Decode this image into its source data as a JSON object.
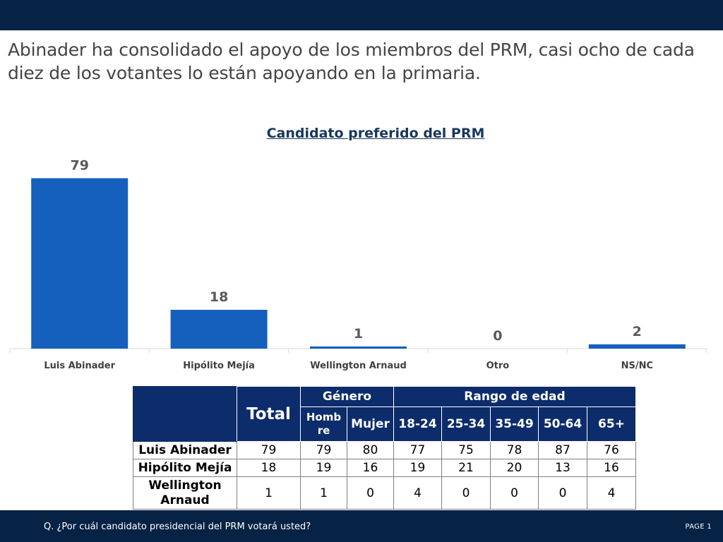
{
  "headline": "Abinader ha consolidado el apoyo de los miembros del PRM, casi ocho de cada diez de los votantes lo están apoyando en la primaria.",
  "chart_data": {
    "type": "bar",
    "title": "Candidato preferido del PRM",
    "categories": [
      "Luis Abinader",
      "Hipólito Mejía",
      "Wellington Arnaud",
      "Otro",
      "NS/NC"
    ],
    "values": [
      79,
      18,
      1,
      0,
      2
    ],
    "ylim": [
      0,
      88
    ],
    "bar_color": "#1560bd",
    "grid": false
  },
  "table": {
    "total_label": "Total",
    "groups": [
      "Género",
      "Rango de edad"
    ],
    "sub_headers": [
      "Hombre",
      "Mujer",
      "18-24",
      "25-34",
      "35-49",
      "50-64",
      "65+"
    ],
    "rows": [
      {
        "label": "Luis Abinader",
        "values": [
          "79",
          "79",
          "80",
          "77",
          "75",
          "78",
          "87",
          "76"
        ]
      },
      {
        "label": "Hipólito Mejía",
        "values": [
          "18",
          "19",
          "16",
          "19",
          "21",
          "20",
          "13",
          "16"
        ]
      },
      {
        "label": "Wellington Arnaud",
        "values": [
          "1",
          "1",
          "0",
          "4",
          "0",
          "0",
          "0",
          "4"
        ]
      }
    ]
  },
  "footer": {
    "question": "Q. ¿Por cuál candidato presidencial del PRM votará usted?",
    "page": "PAGE 1"
  }
}
